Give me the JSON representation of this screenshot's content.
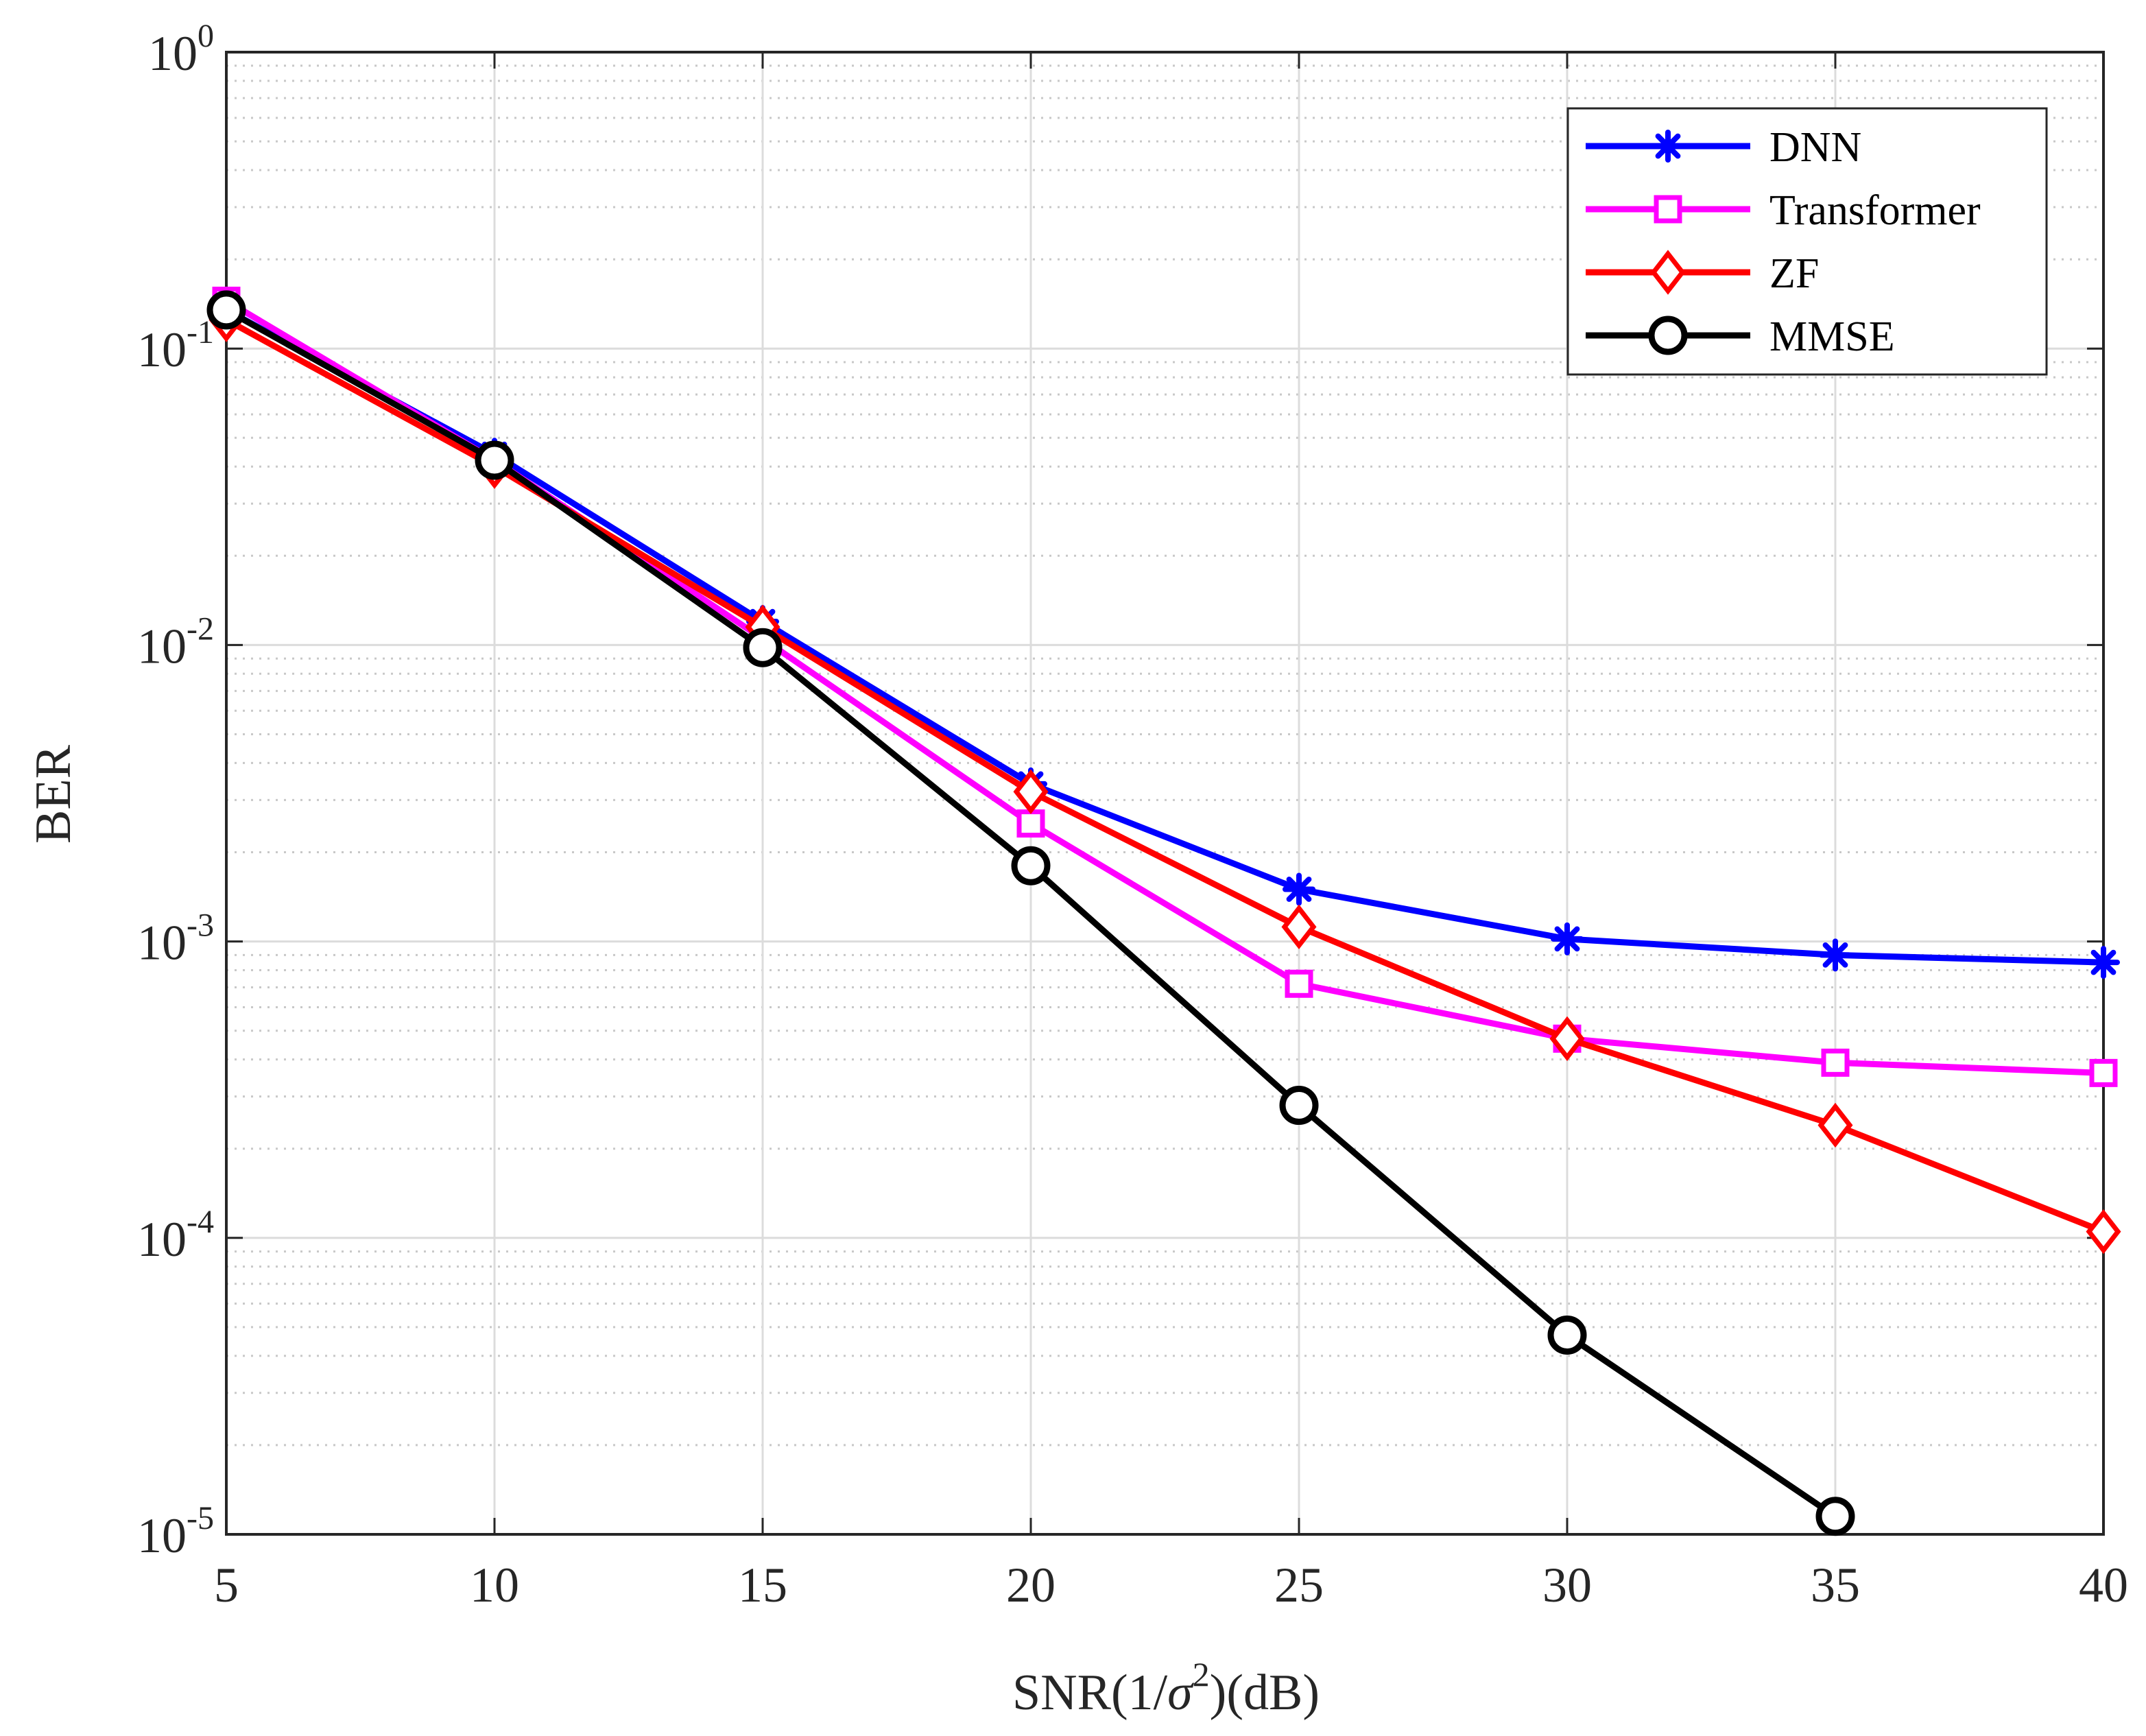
{
  "chart_data": {
    "type": "line",
    "title": "",
    "xlabel": {
      "prefix": "SNR(1/",
      "symbol": "σ",
      "superscript": "2",
      "suffix": ")(dB)"
    },
    "ylabel": "BER",
    "yscale": "log",
    "xlim": [
      5,
      40
    ],
    "ylim": [
      1e-05,
      1
    ],
    "grid": true,
    "legend_position": "top-right",
    "x_ticks": [
      "5",
      "10",
      "15",
      "20",
      "25",
      "30",
      "35",
      "40"
    ],
    "x_tick_values": [
      5,
      10,
      15,
      20,
      25,
      30,
      35,
      40
    ],
    "y_ticks": [
      {
        "base": "10",
        "exp": "0",
        "value": 1
      },
      {
        "base": "10",
        "exp": "-1",
        "value": 0.1
      },
      {
        "base": "10",
        "exp": "-2",
        "value": 0.01
      },
      {
        "base": "10",
        "exp": "-3",
        "value": 0.001
      },
      {
        "base": "10",
        "exp": "-4",
        "value": 0.0001
      },
      {
        "base": "10",
        "exp": "-5",
        "value": 1e-05
      }
    ],
    "series": [
      {
        "name": "DNN",
        "color": "#0000ff",
        "marker": "asterisk",
        "x": [
          5,
          10,
          15,
          20,
          25,
          30,
          35,
          40
        ],
        "values": [
          0.135,
          0.044,
          0.012,
          0.0034,
          0.0015,
          0.00102,
          0.0009,
          0.00085
        ]
      },
      {
        "name": "Transformer",
        "color": "#ff00ff",
        "marker": "square",
        "x": [
          5,
          10,
          15,
          20,
          25,
          30,
          35,
          40
        ],
        "values": [
          0.145,
          0.042,
          0.0105,
          0.0025,
          0.00072,
          0.00047,
          0.00039,
          0.00036
        ]
      },
      {
        "name": "ZF",
        "color": "#ff0000",
        "marker": "diamond",
        "x": [
          5,
          10,
          15,
          20,
          25,
          30,
          35,
          40
        ],
        "values": [
          0.125,
          0.04,
          0.0115,
          0.0032,
          0.00112,
          0.00047,
          0.00024,
          0.000105
        ]
      },
      {
        "name": "MMSE",
        "color": "#000000",
        "marker": "circle",
        "x": [
          5,
          10,
          15,
          20,
          25,
          30,
          35
        ],
        "values": [
          0.135,
          0.042,
          0.0098,
          0.0018,
          0.00028,
          4.7e-05,
          1.15e-05
        ]
      }
    ]
  }
}
